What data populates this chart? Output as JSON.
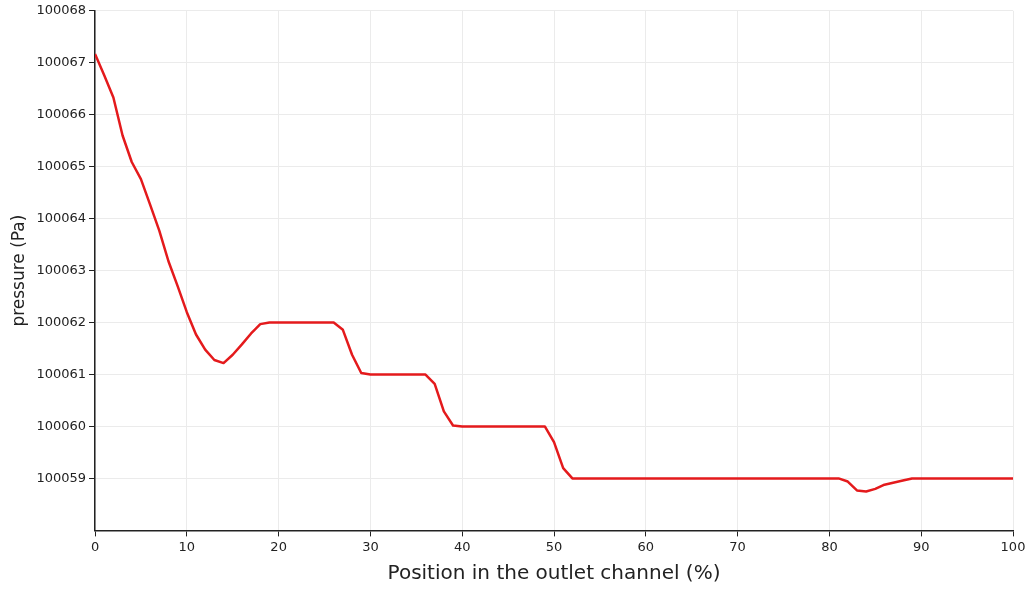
{
  "chart_data": {
    "type": "line",
    "xlabel": "Position in the outlet channel (%)",
    "ylabel": "pressure (Pa)",
    "x": [
      0,
      1,
      2,
      3,
      4,
      5,
      6,
      7,
      8,
      9,
      10,
      11,
      12,
      13,
      14,
      15,
      16,
      17,
      18,
      19,
      26,
      27,
      28,
      29,
      30,
      36,
      37,
      38,
      39,
      40,
      49,
      50,
      51,
      52,
      81,
      82,
      83,
      84,
      85,
      86,
      88,
      89,
      100
    ],
    "series": [
      {
        "color": "#e41a1c",
        "values": [
          100067.17,
          100066.76,
          100066.33,
          100065.6,
          100065.09,
          100064.76,
          100064.27,
          100063.77,
          100063.18,
          100062.7,
          100062.2,
          100061.77,
          100061.48,
          100061.28,
          100061.22,
          100061.38,
          100061.58,
          100061.79,
          100061.97,
          100062,
          100062,
          100061.86,
          100061.38,
          100061.03,
          100061,
          100061,
          100060.82,
          100060.29,
          100060.02,
          100060,
          100060,
          100059.7,
          100059.2,
          100059,
          100059,
          100058.94,
          100058.77,
          100058.75,
          100058.8,
          100058.88,
          100058.96,
          100059,
          100059
        ]
      }
    ],
    "xlim": [
      0,
      100
    ],
    "xticks": [
      0,
      10,
      20,
      30,
      40,
      50,
      60,
      70,
      80,
      90,
      100
    ],
    "ylim": [
      100058,
      100068
    ],
    "yticks": [
      100059,
      100060,
      100061,
      100062,
      100063,
      100064,
      100065,
      100066,
      100067,
      100068
    ],
    "grid": true,
    "legend": false,
    "marker": "none",
    "line_style": "solid"
  }
}
